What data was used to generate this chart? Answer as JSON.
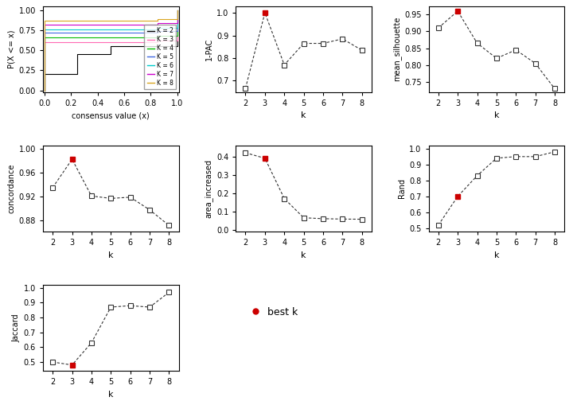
{
  "k_values": [
    2,
    3,
    4,
    5,
    6,
    7,
    8
  ],
  "pac_1": [
    0.667,
    1.0,
    0.77,
    0.865,
    0.865,
    0.885,
    0.835
  ],
  "pac_best": 3,
  "mean_silhouette": [
    0.91,
    0.96,
    0.865,
    0.82,
    0.845,
    0.805,
    0.73
  ],
  "mean_sil_best": 3,
  "concordance": [
    0.935,
    0.982,
    0.921,
    0.917,
    0.919,
    0.898,
    0.872
  ],
  "concordance_best": 3,
  "area_increased": [
    0.42,
    0.39,
    0.17,
    0.065,
    0.06,
    0.058,
    0.057
  ],
  "area_best": 3,
  "rand": [
    0.52,
    0.7,
    0.83,
    0.94,
    0.95,
    0.95,
    0.98
  ],
  "rand_best": 3,
  "jaccard": [
    0.5,
    0.48,
    0.63,
    0.87,
    0.88,
    0.87,
    0.97
  ],
  "jaccard_best": 3,
  "ecdf_colors": [
    "#000000",
    "#FF69B4",
    "#00BB00",
    "#4169E1",
    "#00CCCC",
    "#CC00CC",
    "#DAA520"
  ],
  "ecdf_labels": [
    "K = 2",
    "K = 3",
    "K = 4",
    "K = 5",
    "K = 6",
    "K = 7",
    "K = 8"
  ],
  "best_color": "#CC0000",
  "marker_size": 4,
  "line_color": "#333333",
  "background": "#FFFFFF"
}
